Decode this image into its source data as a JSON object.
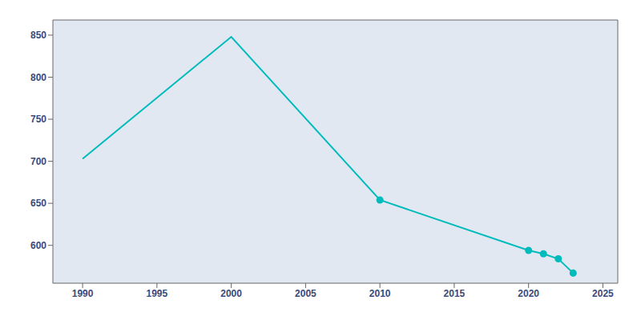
{
  "chart_data": {
    "type": "line",
    "x": [
      1990,
      2000,
      2010,
      2020,
      2021,
      2022,
      2023
    ],
    "series": [
      {
        "type": "line",
        "color": "#00BBBB",
        "values": [
          703,
          848,
          654,
          594,
          590,
          584,
          567
        ]
      },
      {
        "type": "scatter",
        "marker": "circle",
        "color": "#00BBBB",
        "values": [
          null,
          null,
          654,
          594,
          590,
          584,
          567
        ]
      }
    ],
    "xlim": [
      1988,
      2026
    ],
    "ylim": [
      555,
      868
    ],
    "xticks": [
      1990,
      1995,
      2000,
      2005,
      2010,
      2015,
      2020,
      2025
    ],
    "yticks": [
      600,
      650,
      700,
      750,
      800,
      850
    ],
    "grid": true
  }
}
